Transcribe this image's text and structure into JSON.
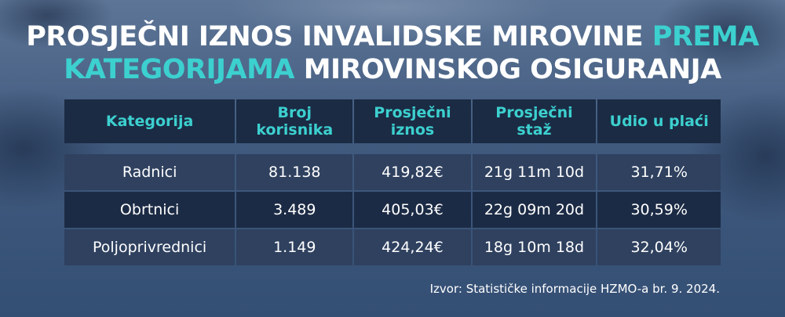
{
  "title": {
    "line1_white": "PROSJEČNI IZNOS INVALIDSKE MIROVINE",
    "line1_accent": "PREMA",
    "line2_accent": "KATEGORIJAMA",
    "line2_white": "MIROVINSKOG OSIGURANJA"
  },
  "table": {
    "headers": [
      "Kategorija",
      "Broj korisnika",
      "Prosječni iznos",
      "Prosječni staž",
      "Udio u plaći"
    ],
    "rows": [
      [
        "Radnici",
        "81.138",
        "419,82€",
        "21g 11m 10d",
        "31,71%"
      ],
      [
        "Obrtnici",
        "3.489",
        "405,03€",
        "22g 09m 20d",
        "30,59%"
      ],
      [
        "Poljoprivrednici",
        "1.149",
        "424,24€",
        "18g 10m 18d",
        "32,04%"
      ]
    ]
  },
  "source": "Izvor: Statističke informacije HZMO-a br. 9. 2024.",
  "colors": {
    "accent": "#3cd0cf",
    "header_bg": "#1b2b44",
    "row_light": "#2f415f",
    "row_dark": "#1c2b45"
  }
}
